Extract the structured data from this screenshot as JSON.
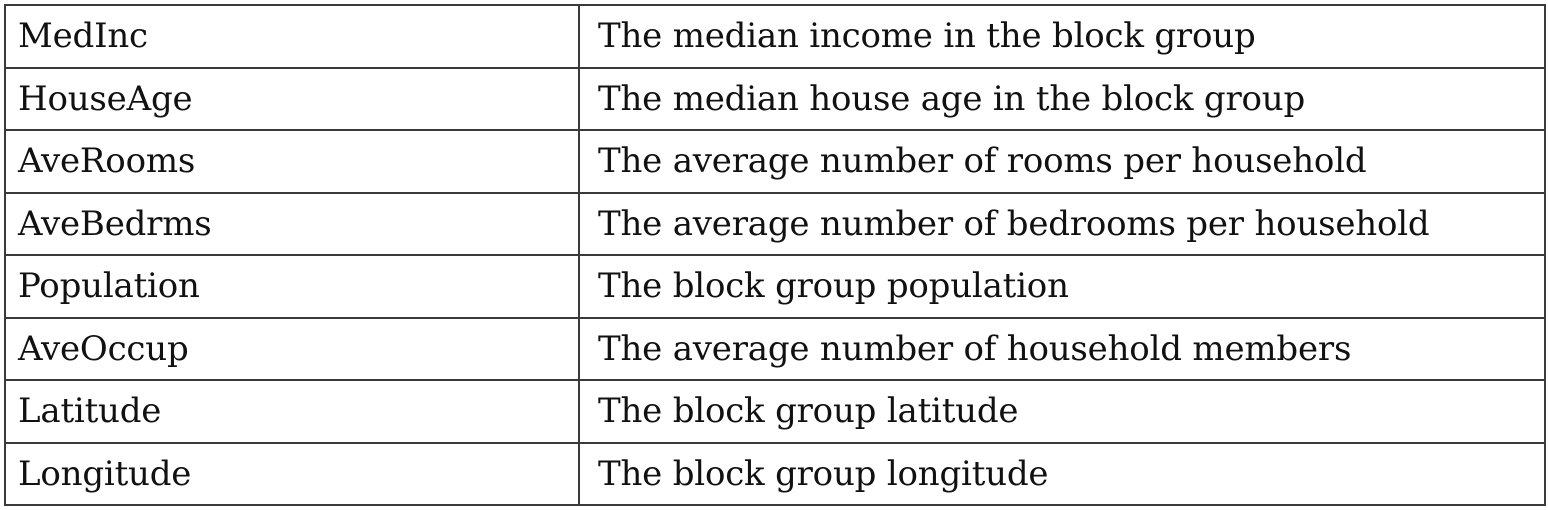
{
  "table": {
    "rows": [
      {
        "feature": "MedInc",
        "description": "The median income in the block group"
      },
      {
        "feature": "HouseAge",
        "description": "The median house age in the block group"
      },
      {
        "feature": "AveRooms",
        "description": "The average number of rooms per household"
      },
      {
        "feature": "AveBedrms",
        "description": "The average number of bedrooms per household"
      },
      {
        "feature": "Population",
        "description": "The block group population"
      },
      {
        "feature": "AveOccup",
        "description": "The average number of household members"
      },
      {
        "feature": "Latitude",
        "description": "The block group latitude"
      },
      {
        "feature": "Longitude",
        "description": "The block group longitude"
      }
    ]
  }
}
